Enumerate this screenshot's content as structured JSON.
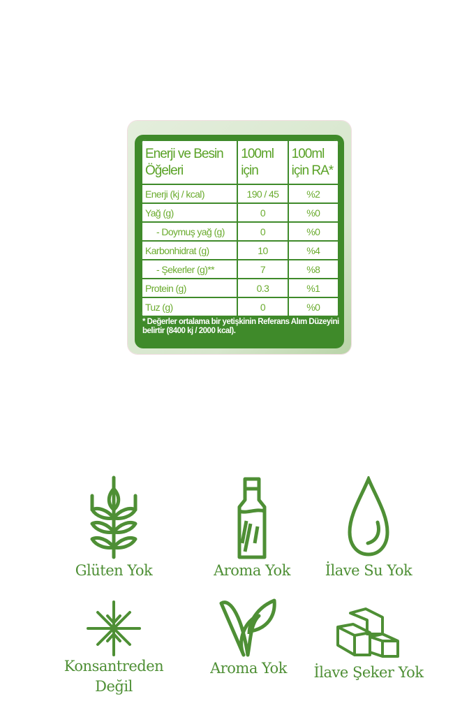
{
  "nutrition": {
    "header": [
      "Enerji ve Besin Öğeleri",
      "100ml için",
      "100ml için RA*"
    ],
    "rows": [
      {
        "label": "Enerji (kj / kcal)",
        "per100": "190 / 45",
        "ra": "%2",
        "indent": false
      },
      {
        "label": "Yağ (g)",
        "per100": "0",
        "ra": "%0",
        "indent": false
      },
      {
        "label": "- Doymuş yağ (g)",
        "per100": "0",
        "ra": "%0",
        "indent": true
      },
      {
        "label": "Karbonhidrat (g)",
        "per100": "10",
        "ra": "%4",
        "indent": false
      },
      {
        "label": "- Şekerler (g)**",
        "per100": "7",
        "ra": "%8",
        "indent": true
      },
      {
        "label": "Protein (g)",
        "per100": "0.3",
        "ra": "%1",
        "indent": false
      },
      {
        "label": "Tuz (g)",
        "per100": "0",
        "ra": "%0",
        "indent": false
      }
    ],
    "footnote": "* Değerler ortalama bir yetişkinin Referans Alım Düzeyini belirtir (8400 kj / 2000 kcal)."
  },
  "features": [
    {
      "icon": "wheat-icon",
      "label": "Glüten Yok"
    },
    {
      "icon": "bottle-icon",
      "label": "Aroma Yok"
    },
    {
      "icon": "water-drop-icon",
      "label": "İlave Su Yok"
    },
    {
      "icon": "concentrate-arrows-icon",
      "label": "Konsantreden Değil"
    },
    {
      "icon": "leaf-v-icon",
      "label": "Aroma Yok"
    },
    {
      "icon": "sugar-cubes-icon",
      "label": "İlave Şeker Yok"
    }
  ],
  "colors": {
    "table_green": "#3f8a2a",
    "text_green": "#6aab2e",
    "icon_green": "#4e8f35"
  }
}
